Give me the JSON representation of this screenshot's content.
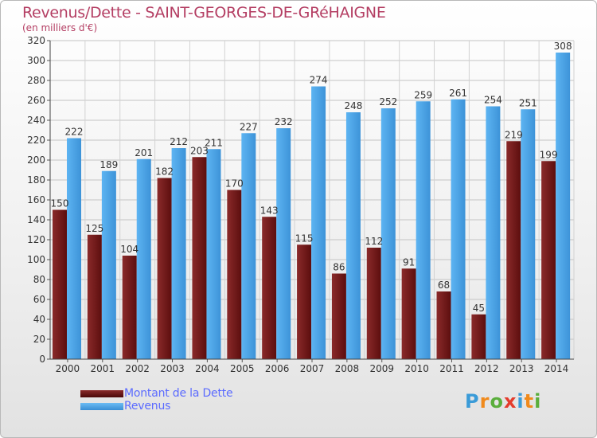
{
  "title": "Revenus/Dette - SAINT-GEORGES-DE-GRéHAIGNE",
  "subtitle": "(en milliers d'€)",
  "logo": {
    "letters": [
      "P",
      "r",
      "o",
      "x",
      "i",
      "t",
      "i"
    ],
    "colors": [
      "#3a9bd8",
      "#f08a1c",
      "#5aae3c",
      "#e43c2c",
      "#3a9bd8",
      "#f08a1c",
      "#5aae3c"
    ]
  },
  "chart_data": {
    "type": "bar",
    "title": "Revenus/Dette - SAINT-GEORGES-DE-GRéHAIGNE",
    "ylabel": "(en milliers d'€)",
    "ylim": [
      0,
      320
    ],
    "yticks": [
      0,
      20,
      40,
      60,
      80,
      100,
      120,
      140,
      160,
      180,
      200,
      220,
      240,
      260,
      280,
      300,
      320
    ],
    "grid": true,
    "legend_position": "bottom-left",
    "categories": [
      "2000",
      "2001",
      "2002",
      "2003",
      "2004",
      "2005",
      "2006",
      "2007",
      "2008",
      "2009",
      "2010",
      "2011",
      "2012",
      "2013",
      "2014"
    ],
    "series": [
      {
        "name": "Montant de la Dette",
        "color": "#7a1a1a",
        "values": [
          150,
          125,
          104,
          182,
          203,
          170,
          143,
          115,
          86,
          112,
          91,
          68,
          45,
          219,
          199
        ]
      },
      {
        "name": "Revenus",
        "color": "#4aa3e8",
        "values": [
          222,
          189,
          201,
          212,
          211,
          227,
          232,
          274,
          248,
          252,
          259,
          261,
          254,
          251,
          308
        ]
      }
    ]
  }
}
